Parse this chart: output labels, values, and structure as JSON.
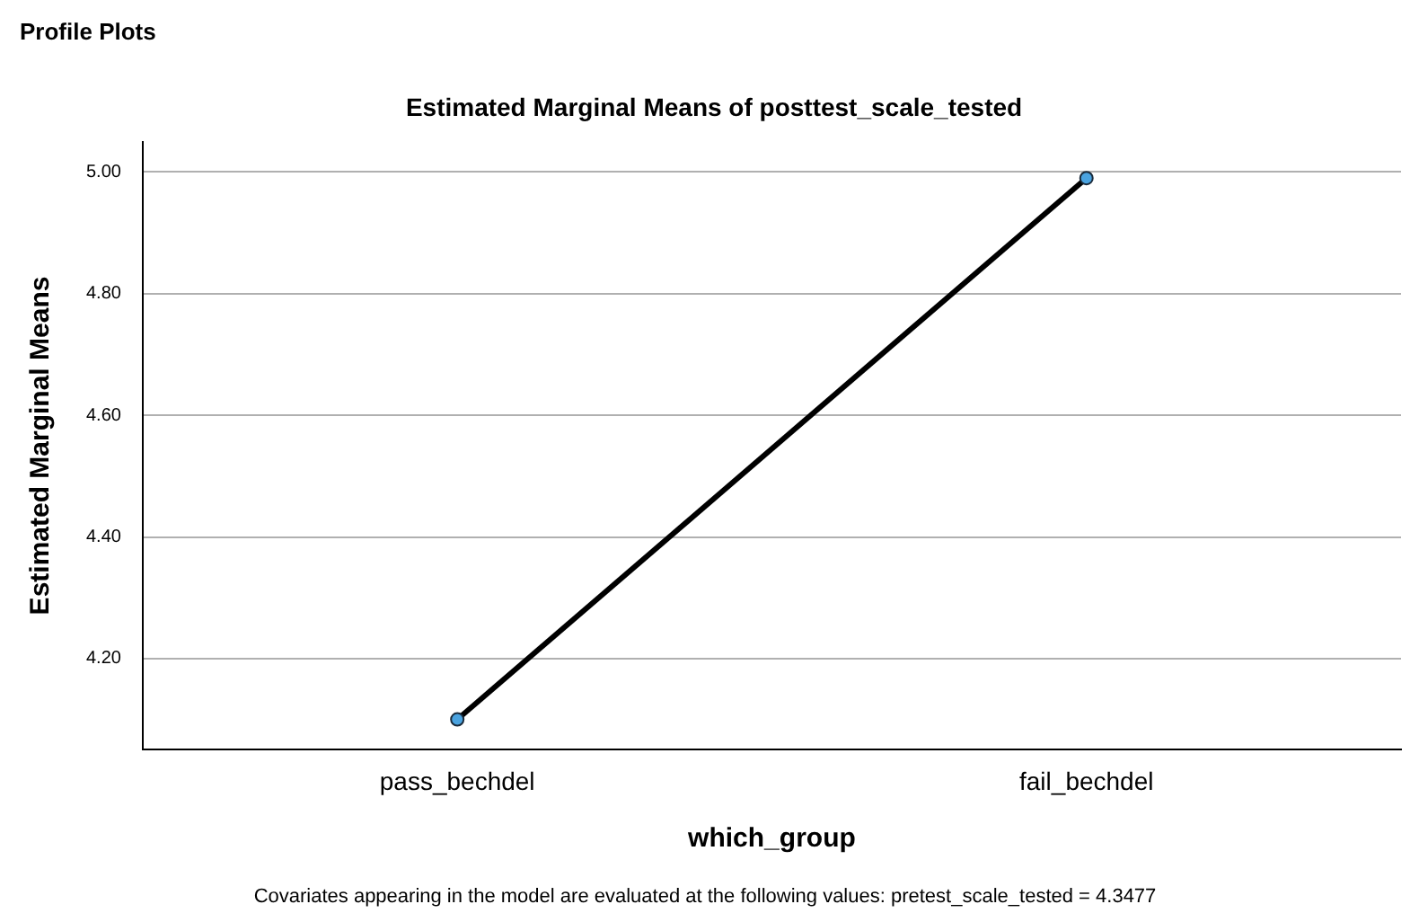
{
  "chart_data": {
    "type": "line",
    "title": "Estimated Marginal Means of posttest_scale_tested",
    "xlabel": "which_group",
    "ylabel": "Estimated Marginal Means",
    "categories": [
      "pass_bechdel",
      "fail_bechdel"
    ],
    "series": [
      {
        "color": "#000000",
        "values": [
          4.1,
          4.99
        ]
      }
    ],
    "ylim": [
      4.05,
      5.05
    ],
    "yticks": [
      {
        "value": 4.2,
        "label": "4.20"
      },
      {
        "value": 4.4,
        "label": "4.40"
      },
      {
        "value": 4.6,
        "label": "4.60"
      },
      {
        "value": 4.8,
        "label": "4.80"
      },
      {
        "value": 5.0,
        "label": "5.00"
      }
    ],
    "grid": "y",
    "legend": false,
    "marker": "circle",
    "line_style": "solid",
    "annotations": [
      "Profile Plots",
      "Covariates appearing in the model are evaluated at the following values: pretest_scale_tested = 4.3477"
    ]
  }
}
